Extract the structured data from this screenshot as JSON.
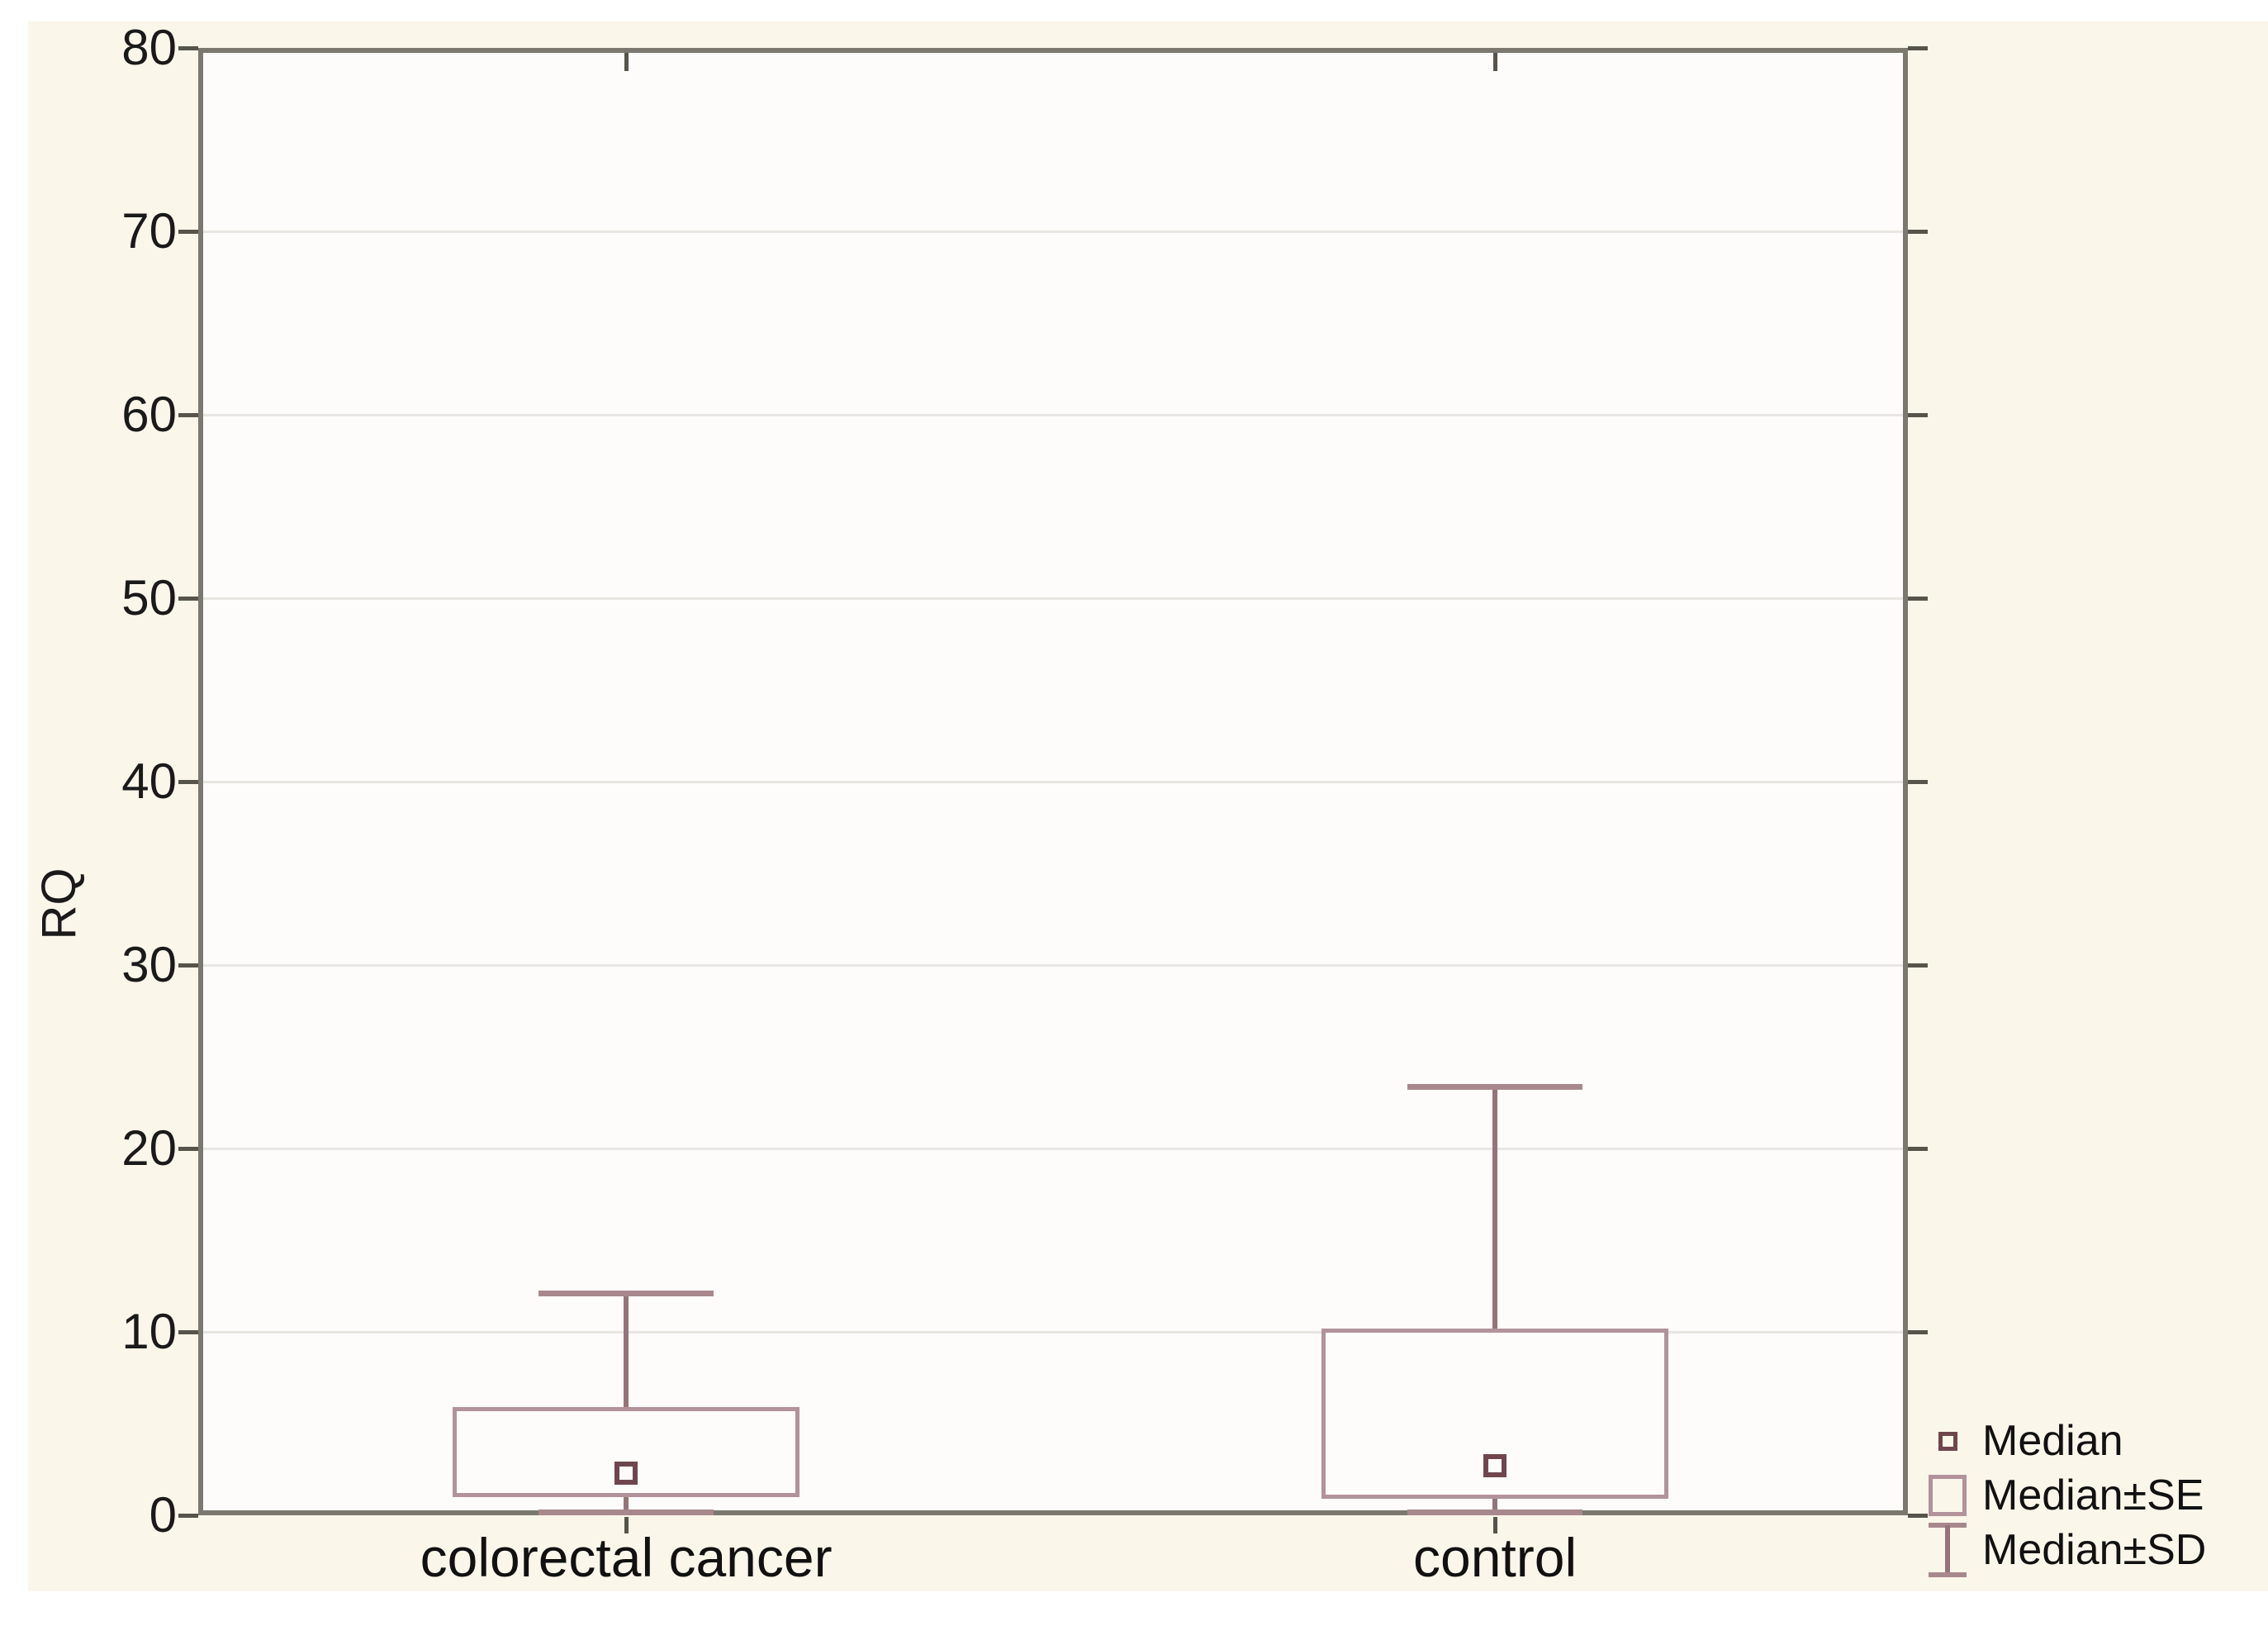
{
  "figure": {
    "ylabel": "RQ"
  },
  "colors": {
    "canvas_background": "#fbf6ea",
    "plot_background": "#fdfcfa",
    "frame": "#7a786f",
    "gridline": "#e7e6e2",
    "tick": "#56544b",
    "text": "#1a1a1a",
    "se_box_stroke": "#b2929b",
    "whisker_line": "#96737a",
    "whisker_cap": "#a9888d",
    "median_marker_stroke": "#6f464d"
  },
  "chart_data": {
    "type": "box",
    "title": "",
    "xlabel": "",
    "ylabel": "RQ",
    "ylim": [
      0,
      80
    ],
    "yticks": [
      0,
      10,
      20,
      30,
      40,
      50,
      60,
      70,
      80
    ],
    "grid": "horizontal",
    "legend_position": "bottom-right-outside",
    "categories": [
      "colorectal cancer",
      "control"
    ],
    "legend": [
      "Median",
      "Median±SE",
      "Median±SD"
    ],
    "series": [
      {
        "category": "colorectal cancer",
        "median": 2.3,
        "median_minus_se": 1.0,
        "median_plus_se": 5.9,
        "median_minus_sd": 0.0,
        "median_plus_sd": 12.1
      },
      {
        "category": "control",
        "median": 2.7,
        "median_minus_se": 0.9,
        "median_plus_se": 10.2,
        "median_minus_sd": 0.0,
        "median_plus_sd": 23.4
      }
    ]
  }
}
